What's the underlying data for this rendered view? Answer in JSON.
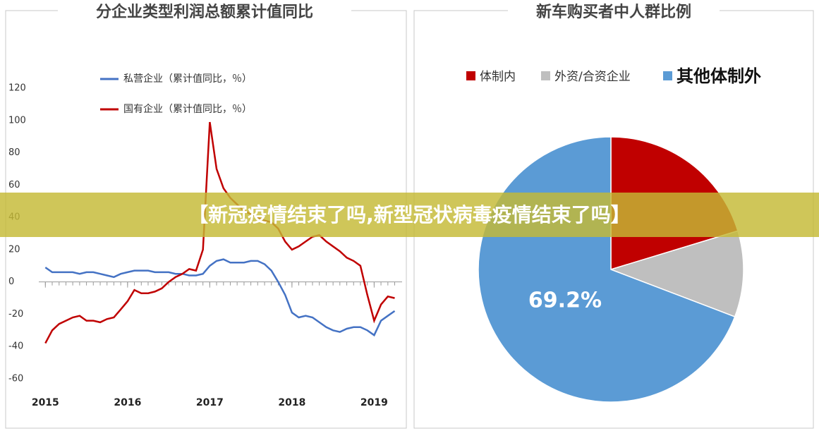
{
  "banner": "【新冠疫情结束了吗,新型冠状病毒疫情结束了吗】",
  "chart_data": [
    {
      "type": "line",
      "title": "分企业类型利润总额累计值同比",
      "x": [
        2015,
        2015.083,
        2015.167,
        2015.25,
        2015.333,
        2015.417,
        2015.5,
        2015.583,
        2015.667,
        2015.75,
        2015.833,
        2015.917,
        2016,
        2016.083,
        2016.167,
        2016.25,
        2016.333,
        2016.417,
        2016.5,
        2016.583,
        2016.667,
        2016.75,
        2016.833,
        2016.917,
        2017,
        2017.083,
        2017.167,
        2017.25,
        2017.333,
        2017.417,
        2017.5,
        2017.583,
        2017.667,
        2017.75,
        2017.833,
        2017.917,
        2018,
        2018.083,
        2018.167,
        2018.25,
        2018.333,
        2018.417,
        2018.5,
        2018.583,
        2018.667,
        2018.75,
        2018.833,
        2018.917,
        2019,
        2019.083,
        2019.167,
        2019.25
      ],
      "series": [
        {
          "name": "私营企业（累计值同比，％）",
          "color": "#4472c4",
          "values": [
            9,
            6,
            6,
            6,
            6,
            5,
            6,
            6,
            5,
            4,
            3,
            5,
            6,
            7,
            7,
            7,
            6,
            6,
            6,
            5,
            5,
            4,
            4,
            5,
            10,
            13,
            14,
            12,
            12,
            12,
            13,
            13,
            11,
            7,
            0,
            -8,
            -19,
            -22,
            -21,
            -22,
            -25,
            -28,
            -30,
            -31,
            -29,
            -28,
            -28,
            -30,
            -33,
            -24,
            -21,
            -18
          ]
        },
        {
          "name": "国有企业（累计值同比，％）",
          "color": "#c00000",
          "values": [
            -38,
            -30,
            -26,
            -24,
            -22,
            -21,
            -24,
            -24,
            -25,
            -23,
            -22,
            -17,
            -12,
            -5,
            -7,
            -7,
            -6,
            -4,
            0,
            3,
            5,
            8,
            7,
            20,
            99,
            70,
            58,
            52,
            48,
            44,
            42,
            40,
            38,
            37,
            33,
            25,
            20,
            22,
            25,
            28,
            29,
            25,
            22,
            19,
            15,
            13,
            10,
            -8,
            -24,
            -14,
            -9,
            -10
          ]
        }
      ],
      "xlim": [
        2014.92,
        2019.34
      ],
      "xticks": [
        2015,
        2016,
        2017,
        2018,
        2019
      ],
      "ylim": [
        -60,
        120
      ],
      "yticks": [
        -60,
        -40,
        -20,
        0,
        20,
        40,
        60,
        80,
        100,
        120
      ]
    },
    {
      "type": "pie",
      "title": "新车购买者中人群比例",
      "categories": [
        "体制内",
        "外资/合资企业",
        "其他体制外"
      ],
      "values": [
        20.3,
        10.5,
        69.2
      ],
      "value_labels": [
        null,
        null,
        "69.2%"
      ],
      "colors": [
        "#c00000",
        "#bfbfbf",
        "#5b9bd5"
      ]
    }
  ]
}
